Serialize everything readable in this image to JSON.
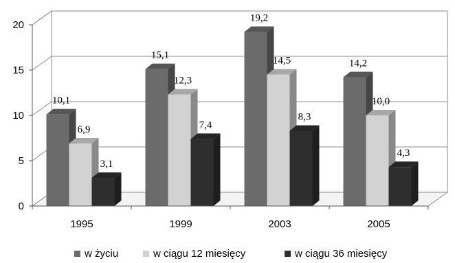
{
  "chart_data": {
    "type": "bar",
    "categories": [
      "1995",
      "1999",
      "2003",
      "2005"
    ],
    "series": [
      {
        "name": "w życiu",
        "values": [
          10.1,
          15.1,
          19.2,
          14.2
        ],
        "labels": [
          "10,1",
          "15,1",
          "19,2",
          "14,2"
        ],
        "color": "#6b6b6b"
      },
      {
        "name": "w ciągu 12 miesięcy",
        "values": [
          6.9,
          12.3,
          14.5,
          10.0
        ],
        "labels": [
          "6,9",
          "12,3",
          "14,5",
          "10,0"
        ],
        "color": "#d2d2d2"
      },
      {
        "name": "w ciągu 36 miesięcy",
        "values": [
          3.1,
          7.4,
          8.3,
          4.3
        ],
        "labels": [
          "3,1",
          "7,4",
          "8,3",
          "4,3"
        ],
        "color": "#2e2e2e"
      }
    ],
    "yticks": [
      0,
      5,
      10,
      15,
      20
    ],
    "ylim": [
      0,
      20
    ],
    "grid": true,
    "legend": "bottom",
    "style": "3d-column"
  }
}
